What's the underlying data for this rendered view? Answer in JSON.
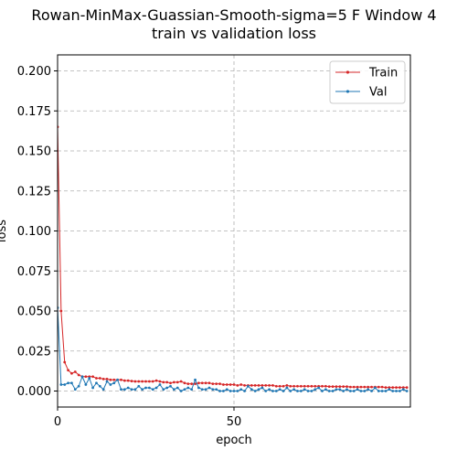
{
  "chart_data": {
    "type": "line",
    "title": "Rowan-MinMax-Guassian-Smooth-sigma=5 F Window 4\ntrain vs validation loss",
    "xlabel": "epoch",
    "ylabel": "loss",
    "xlim": [
      0,
      100
    ],
    "ylim": [
      -0.01,
      0.21
    ],
    "xticks": [
      0,
      50
    ],
    "yticks": [
      0.0,
      0.025,
      0.05,
      0.075,
      0.1,
      0.125,
      0.15,
      0.175,
      0.2
    ],
    "grid": true,
    "legend_position": "top-right",
    "series": [
      {
        "name": "Train",
        "color": "#d62728",
        "x": [
          0,
          1,
          2,
          3,
          4,
          5,
          6,
          7,
          8,
          9,
          10,
          11,
          12,
          13,
          14,
          15,
          16,
          17,
          18,
          19,
          20,
          21,
          22,
          23,
          24,
          25,
          26,
          27,
          28,
          29,
          30,
          31,
          32,
          33,
          34,
          35,
          36,
          37,
          38,
          39,
          40,
          41,
          42,
          43,
          44,
          45,
          46,
          47,
          48,
          49,
          50,
          51,
          52,
          53,
          54,
          55,
          56,
          57,
          58,
          59,
          60,
          61,
          62,
          63,
          64,
          65,
          66,
          67,
          68,
          69,
          70,
          71,
          72,
          73,
          74,
          75,
          76,
          77,
          78,
          79,
          80,
          81,
          82,
          83,
          84,
          85,
          86,
          87,
          88,
          89,
          90,
          91,
          92,
          93,
          94,
          95,
          96,
          97,
          98,
          99
        ],
        "y": [
          0.165,
          0.05,
          0.018,
          0.013,
          0.011,
          0.012,
          0.01,
          0.009,
          0.009,
          0.009,
          0.009,
          0.008,
          0.008,
          0.0075,
          0.0075,
          0.007,
          0.007,
          0.007,
          0.007,
          0.0065,
          0.0065,
          0.0062,
          0.006,
          0.006,
          0.006,
          0.006,
          0.006,
          0.006,
          0.0065,
          0.006,
          0.0055,
          0.0055,
          0.005,
          0.0055,
          0.0055,
          0.006,
          0.005,
          0.0045,
          0.0045,
          0.0045,
          0.005,
          0.005,
          0.005,
          0.005,
          0.0045,
          0.0045,
          0.0045,
          0.004,
          0.004,
          0.004,
          0.004,
          0.0035,
          0.004,
          0.0035,
          0.0035,
          0.0035,
          0.0035,
          0.0035,
          0.0035,
          0.0035,
          0.0035,
          0.0035,
          0.003,
          0.003,
          0.003,
          0.0035,
          0.003,
          0.003,
          0.003,
          0.003,
          0.003,
          0.003,
          0.003,
          0.003,
          0.003,
          0.003,
          0.003,
          0.0028,
          0.0028,
          0.0028,
          0.0028,
          0.0028,
          0.0028,
          0.0025,
          0.0025,
          0.0025,
          0.0025,
          0.0025,
          0.0025,
          0.0025,
          0.0025,
          0.0025,
          0.0025,
          0.0022,
          0.0022,
          0.0022,
          0.0022,
          0.0022,
          0.0022,
          0.0022
        ]
      },
      {
        "name": "Val",
        "color": "#1f77b4",
        "x": [
          0,
          1,
          2,
          3,
          4,
          5,
          6,
          7,
          8,
          9,
          10,
          11,
          12,
          13,
          14,
          15,
          16,
          17,
          18,
          19,
          20,
          21,
          22,
          23,
          24,
          25,
          26,
          27,
          28,
          29,
          30,
          31,
          32,
          33,
          34,
          35,
          36,
          37,
          38,
          39,
          40,
          41,
          42,
          43,
          44,
          45,
          46,
          47,
          48,
          49,
          50,
          51,
          52,
          53,
          54,
          55,
          56,
          57,
          58,
          59,
          60,
          61,
          62,
          63,
          64,
          65,
          66,
          67,
          68,
          69,
          70,
          71,
          72,
          73,
          74,
          75,
          76,
          77,
          78,
          79,
          80,
          81,
          82,
          83,
          84,
          85,
          86,
          87,
          88,
          89,
          90,
          91,
          92,
          93,
          94,
          95,
          96,
          97,
          98,
          99
        ],
        "y": [
          0.052,
          0.004,
          0.004,
          0.005,
          0.005,
          0.001,
          0.003,
          0.009,
          0.004,
          0.008,
          0.002,
          0.005,
          0.003,
          0.001,
          0.006,
          0.004,
          0.005,
          0.007,
          0.001,
          0.001,
          0.002,
          0.001,
          0.001,
          0.003,
          0.001,
          0.002,
          0.002,
          0.001,
          0.002,
          0.004,
          0.001,
          0.002,
          0.003,
          0.001,
          0.002,
          0.0,
          0.001,
          0.002,
          0.001,
          0.007,
          0.002,
          0.001,
          0.001,
          0.002,
          0.001,
          0.001,
          0.0,
          0.0,
          0.001,
          0.0,
          0.0,
          0.0,
          0.001,
          0.0,
          0.003,
          0.001,
          0.0,
          0.001,
          0.002,
          0.0,
          0.001,
          0.0,
          0.0,
          0.001,
          0.0,
          0.002,
          0.0,
          0.001,
          0.0,
          0.0,
          0.001,
          0.0,
          0.0,
          0.001,
          0.002,
          0.0,
          0.001,
          0.0,
          0.0,
          0.001,
          0.001,
          0.0,
          0.001,
          0.0,
          0.0,
          0.001,
          0.0,
          0.0,
          0.001,
          0.0,
          0.002,
          0.0,
          0.0,
          0.0,
          0.001,
          0.0,
          0.0,
          0.0,
          0.001,
          0.0
        ]
      }
    ]
  }
}
